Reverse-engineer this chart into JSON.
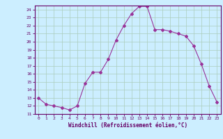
{
  "x": [
    0,
    1,
    2,
    3,
    4,
    5,
    6,
    7,
    8,
    9,
    10,
    11,
    12,
    13,
    14,
    15,
    16,
    17,
    18,
    19,
    20,
    21,
    22,
    23
  ],
  "y": [
    13.0,
    12.2,
    12.0,
    11.8,
    11.5,
    12.0,
    14.8,
    16.2,
    16.2,
    17.8,
    20.2,
    22.0,
    23.5,
    24.4,
    24.4,
    21.5,
    21.5,
    21.3,
    21.0,
    20.7,
    19.5,
    17.2,
    14.5,
    12.5
  ],
  "line_color": "#993399",
  "marker": "D",
  "marker_size": 2,
  "bg_color": "#cceeff",
  "grid_color": "#aaccbb",
  "xlabel": "Windchill (Refroidissement éolien,°C)",
  "xlabel_color": "#660066",
  "tick_color": "#660066",
  "xlim": [
    -0.5,
    23.5
  ],
  "ylim": [
    11.0,
    24.5
  ],
  "yticks": [
    11,
    12,
    13,
    14,
    15,
    16,
    17,
    18,
    19,
    20,
    21,
    22,
    23,
    24
  ],
  "xticks": [
    0,
    1,
    2,
    3,
    4,
    5,
    6,
    7,
    8,
    9,
    10,
    11,
    12,
    13,
    14,
    15,
    16,
    17,
    18,
    19,
    20,
    21,
    22,
    23
  ],
  "spine_color": "#660066"
}
